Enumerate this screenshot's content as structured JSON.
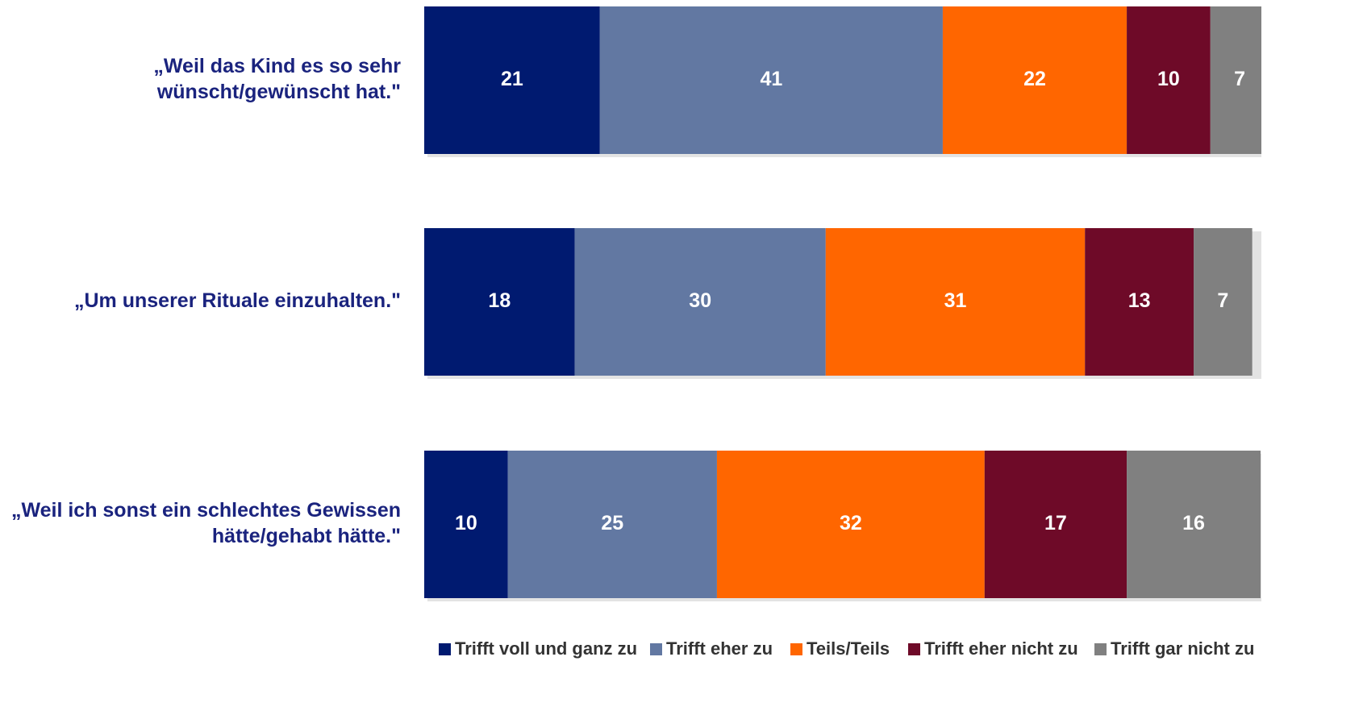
{
  "chart_data": {
    "type": "stacked_bar",
    "orientation": "horizontal",
    "categories": [
      [
        "„Weil das Kind es so sehr",
        "wünscht/gewünscht hat.\""
      ],
      [
        "„Um unserer Rituale einzuhalten.\""
      ],
      [
        "„Weil ich sonst ein schlechtes Gewissen",
        "hätte/gehabt hätte.\""
      ]
    ],
    "series": [
      {
        "name": "Trifft voll und ganz zu",
        "color": "#001a70",
        "values": [
          21,
          18,
          10
        ]
      },
      {
        "name": "Trifft eher zu",
        "color": "#6278a2",
        "values": [
          41,
          30,
          25
        ]
      },
      {
        "name": "Teils/Teils",
        "color": "#ff6600",
        "values": [
          22,
          31,
          32
        ]
      },
      {
        "name": "Trifft eher nicht zu",
        "color": "#6e0a28",
        "values": [
          10,
          13,
          17
        ]
      },
      {
        "name": "Trifft gar nicht zu",
        "color": "#808080",
        "values": [
          7,
          7,
          16
        ]
      }
    ],
    "legend": "bottom"
  }
}
